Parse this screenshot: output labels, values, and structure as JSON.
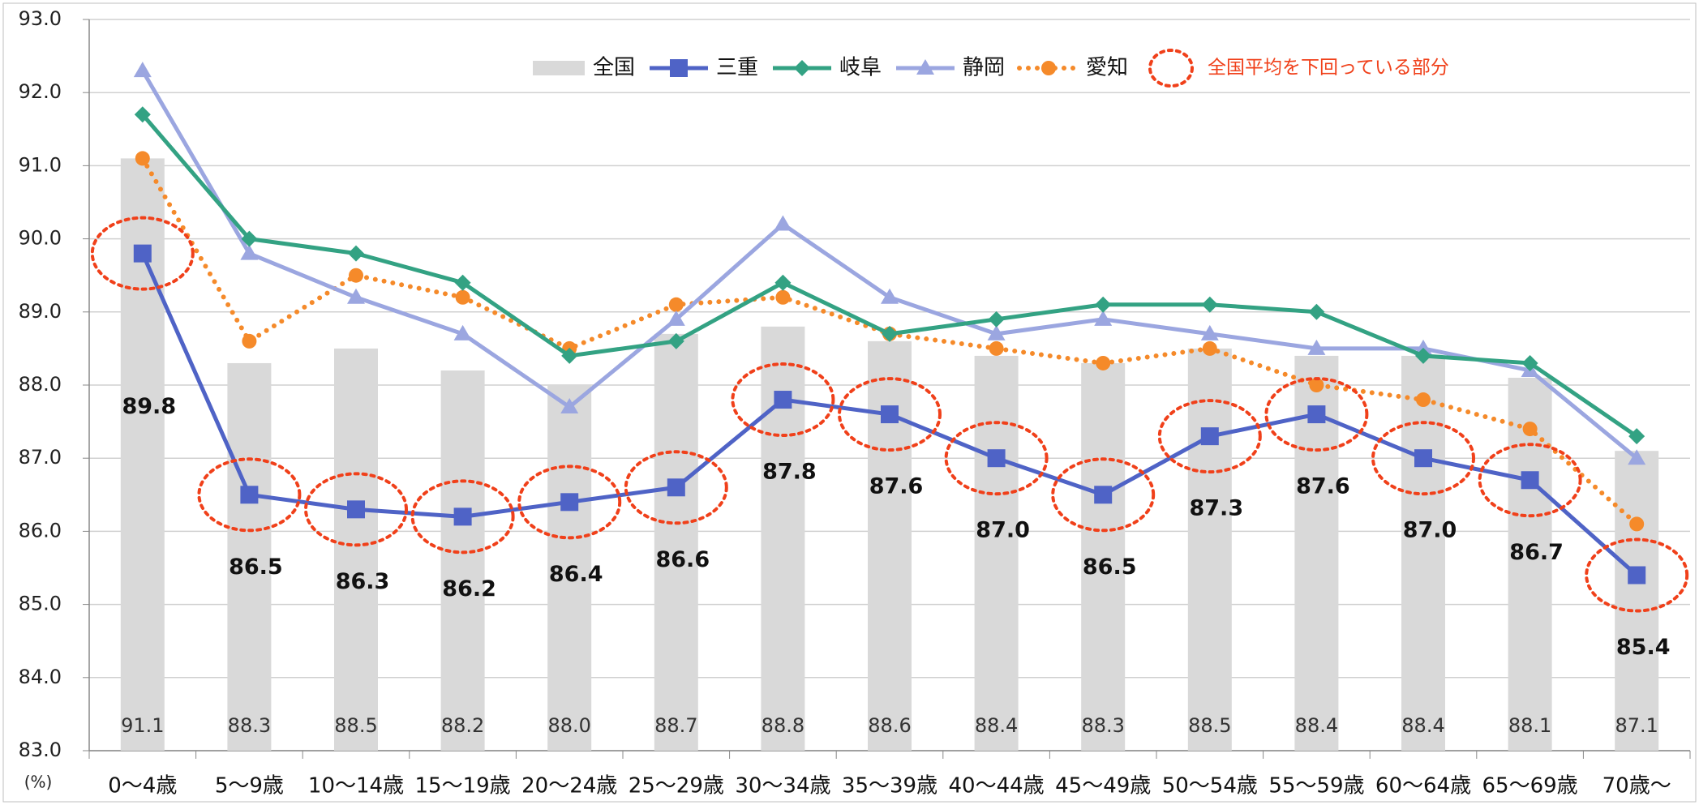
{
  "chart_data": {
    "type": "bar-line",
    "categories": [
      "0～4歳",
      "5～9歳",
      "10～14歳",
      "15～19歳",
      "20～24歳",
      "25～29歳",
      "30～34歳",
      "35～39歳",
      "40～44歳",
      "45～49歳",
      "50～54歳",
      "55～59歳",
      "60～64歳",
      "65～69歳",
      "70歳～"
    ],
    "y_unit_label": "(%)",
    "ylim": [
      83,
      93
    ],
    "yticks": [
      {
        "value": 83,
        "label": "83.0"
      },
      {
        "value": 84,
        "label": "84.0"
      },
      {
        "value": 85,
        "label": "85.0"
      },
      {
        "value": 86,
        "label": "86.0"
      },
      {
        "value": 87,
        "label": "87.0"
      },
      {
        "value": 88,
        "label": "88.0"
      },
      {
        "value": 89,
        "label": "89.0"
      },
      {
        "value": 90,
        "label": "90.0"
      },
      {
        "value": 91,
        "label": "91.0"
      },
      {
        "value": 92,
        "label": "92.0"
      },
      {
        "value": 93,
        "label": "93.0"
      }
    ],
    "grid": true,
    "series": [
      {
        "name": "全国",
        "kind": "bar",
        "color": "#d9d9d9",
        "values": [
          91.1,
          88.3,
          88.5,
          88.2,
          88.0,
          88.7,
          88.8,
          88.6,
          88.4,
          88.3,
          88.5,
          88.4,
          88.4,
          88.1,
          87.1
        ],
        "value_labels": [
          "91.1",
          "88.3",
          "88.5",
          "88.2",
          "88.0",
          "88.7",
          "88.8",
          "88.6",
          "88.4",
          "88.3",
          "88.5",
          "88.4",
          "88.4",
          "88.1",
          "87.1"
        ]
      },
      {
        "name": "三重",
        "kind": "line",
        "marker": "square",
        "color": "#4f63c6",
        "values": [
          89.8,
          86.5,
          86.3,
          86.2,
          86.4,
          86.6,
          87.8,
          87.6,
          87.0,
          86.5,
          87.3,
          87.6,
          87.0,
          86.7,
          85.4
        ],
        "value_labels": [
          "89.8",
          "86.5",
          "86.3",
          "86.2",
          "86.4",
          "86.6",
          "87.8",
          "87.6",
          "87.0",
          "86.5",
          "87.3",
          "87.6",
          "87.0",
          "86.7",
          "85.4"
        ]
      },
      {
        "name": "岐阜",
        "kind": "line",
        "marker": "diamond",
        "color": "#33a283",
        "values": [
          91.7,
          90.0,
          89.8,
          89.4,
          88.4,
          88.6,
          89.4,
          88.7,
          88.9,
          89.1,
          89.1,
          89.0,
          88.4,
          88.3,
          87.3
        ]
      },
      {
        "name": "静岡",
        "kind": "line",
        "marker": "triangle",
        "color": "#9ba6e0",
        "values": [
          92.3,
          89.8,
          89.2,
          88.7,
          87.7,
          88.9,
          90.2,
          89.2,
          88.7,
          88.9,
          88.7,
          88.5,
          88.5,
          88.2,
          87.0
        ]
      },
      {
        "name": "愛知",
        "kind": "line",
        "marker": "circle",
        "dash": "dotted",
        "color": "#f58a2a",
        "values": [
          91.1,
          88.6,
          89.5,
          89.2,
          88.5,
          89.1,
          89.2,
          88.7,
          88.5,
          88.3,
          88.5,
          88.0,
          87.8,
          87.4,
          86.1
        ]
      }
    ],
    "highlight_label": "全国平均を下回っている部分",
    "highlight_color": "#f0401a"
  }
}
